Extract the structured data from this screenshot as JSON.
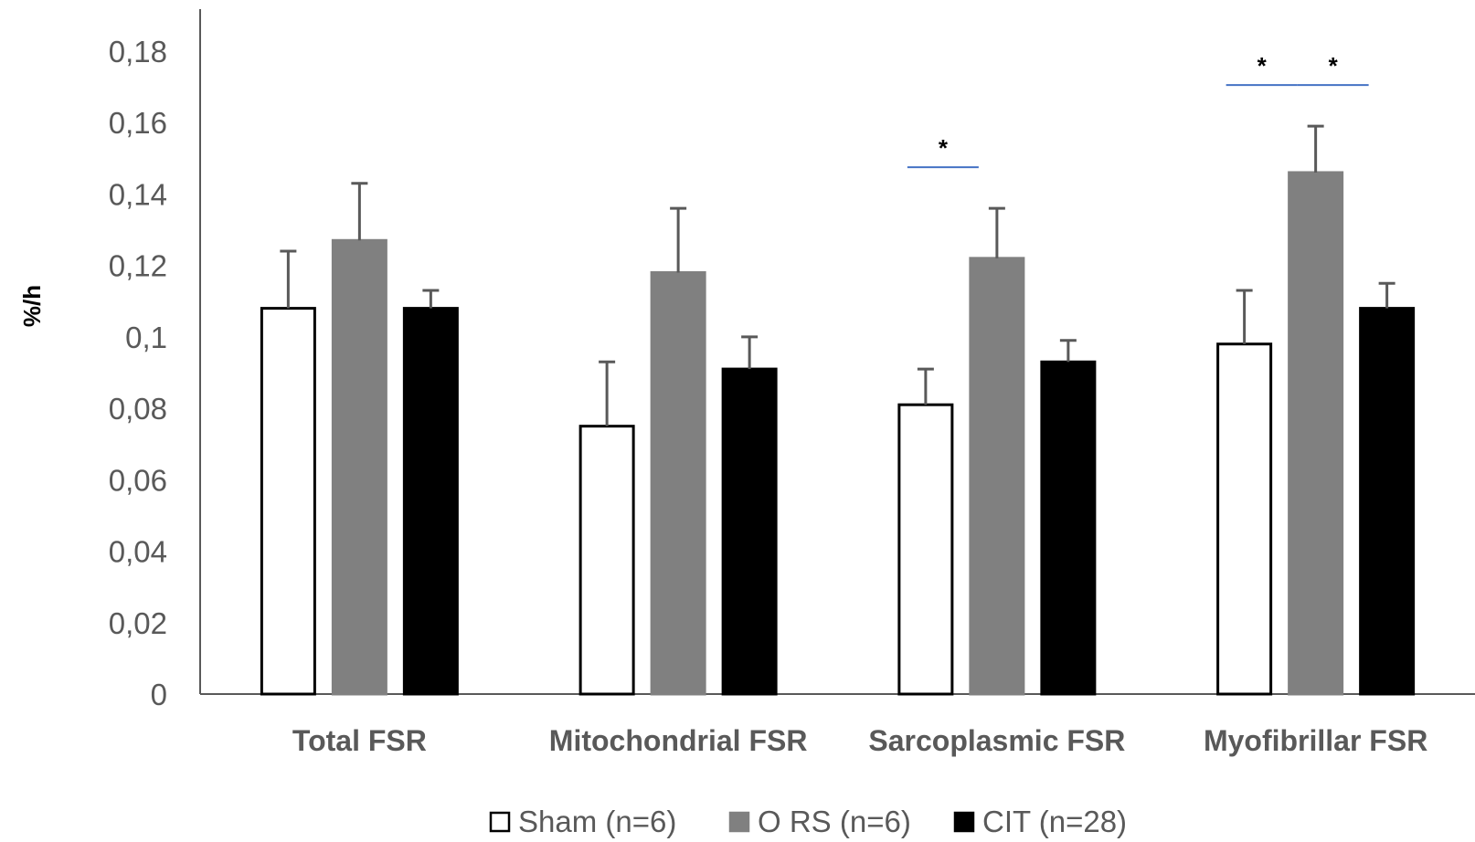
{
  "chart_data": {
    "type": "bar",
    "title": "",
    "xlabel": "",
    "ylabel": "%/h",
    "ylim": [
      0,
      0.18
    ],
    "yticks": [
      0,
      0.02,
      0.04,
      0.06,
      0.08,
      0.1,
      0.12,
      0.14,
      0.16,
      0.18
    ],
    "ytick_labels": [
      "0",
      "0,02",
      "0,04",
      "0,06",
      "0,08",
      "0,1",
      "0,12",
      "0,14",
      "0,16",
      "0,18"
    ],
    "categories": [
      "Total FSR",
      "Mitochondrial FSR",
      "Sarcoplasmic FSR",
      "Myofibrillar FSR"
    ],
    "series": [
      {
        "name": "Sham (n=6)",
        "fill": "#ffffff",
        "stroke": "#000000",
        "values": [
          0.108,
          0.075,
          0.081,
          0.098
        ],
        "errors": [
          0.016,
          0.018,
          0.01,
          0.015
        ]
      },
      {
        "name": "O RS (n=6)",
        "fill": "#808080",
        "stroke": "#808080",
        "values": [
          0.127,
          0.118,
          0.122,
          0.146
        ],
        "errors": [
          0.016,
          0.018,
          0.014,
          0.013
        ]
      },
      {
        "name": "CIT (n=28)",
        "fill": "#000000",
        "stroke": "#000000",
        "values": [
          0.108,
          0.091,
          0.093,
          0.108
        ],
        "errors": [
          0.005,
          0.009,
          0.006,
          0.007
        ]
      }
    ],
    "significance": [
      {
        "category": 2,
        "from_series": 0,
        "to_series": 1,
        "label": "*"
      },
      {
        "category": 3,
        "from_series": 0,
        "to_series": 1,
        "label": "*"
      },
      {
        "category": 3,
        "from_series": 1,
        "to_series": 2,
        "label": "*"
      }
    ],
    "grid": false,
    "legend_position": "bottom",
    "colors": {
      "axis": "#595959",
      "error_bar": "#595959",
      "significance_line": "#4472c4"
    }
  }
}
